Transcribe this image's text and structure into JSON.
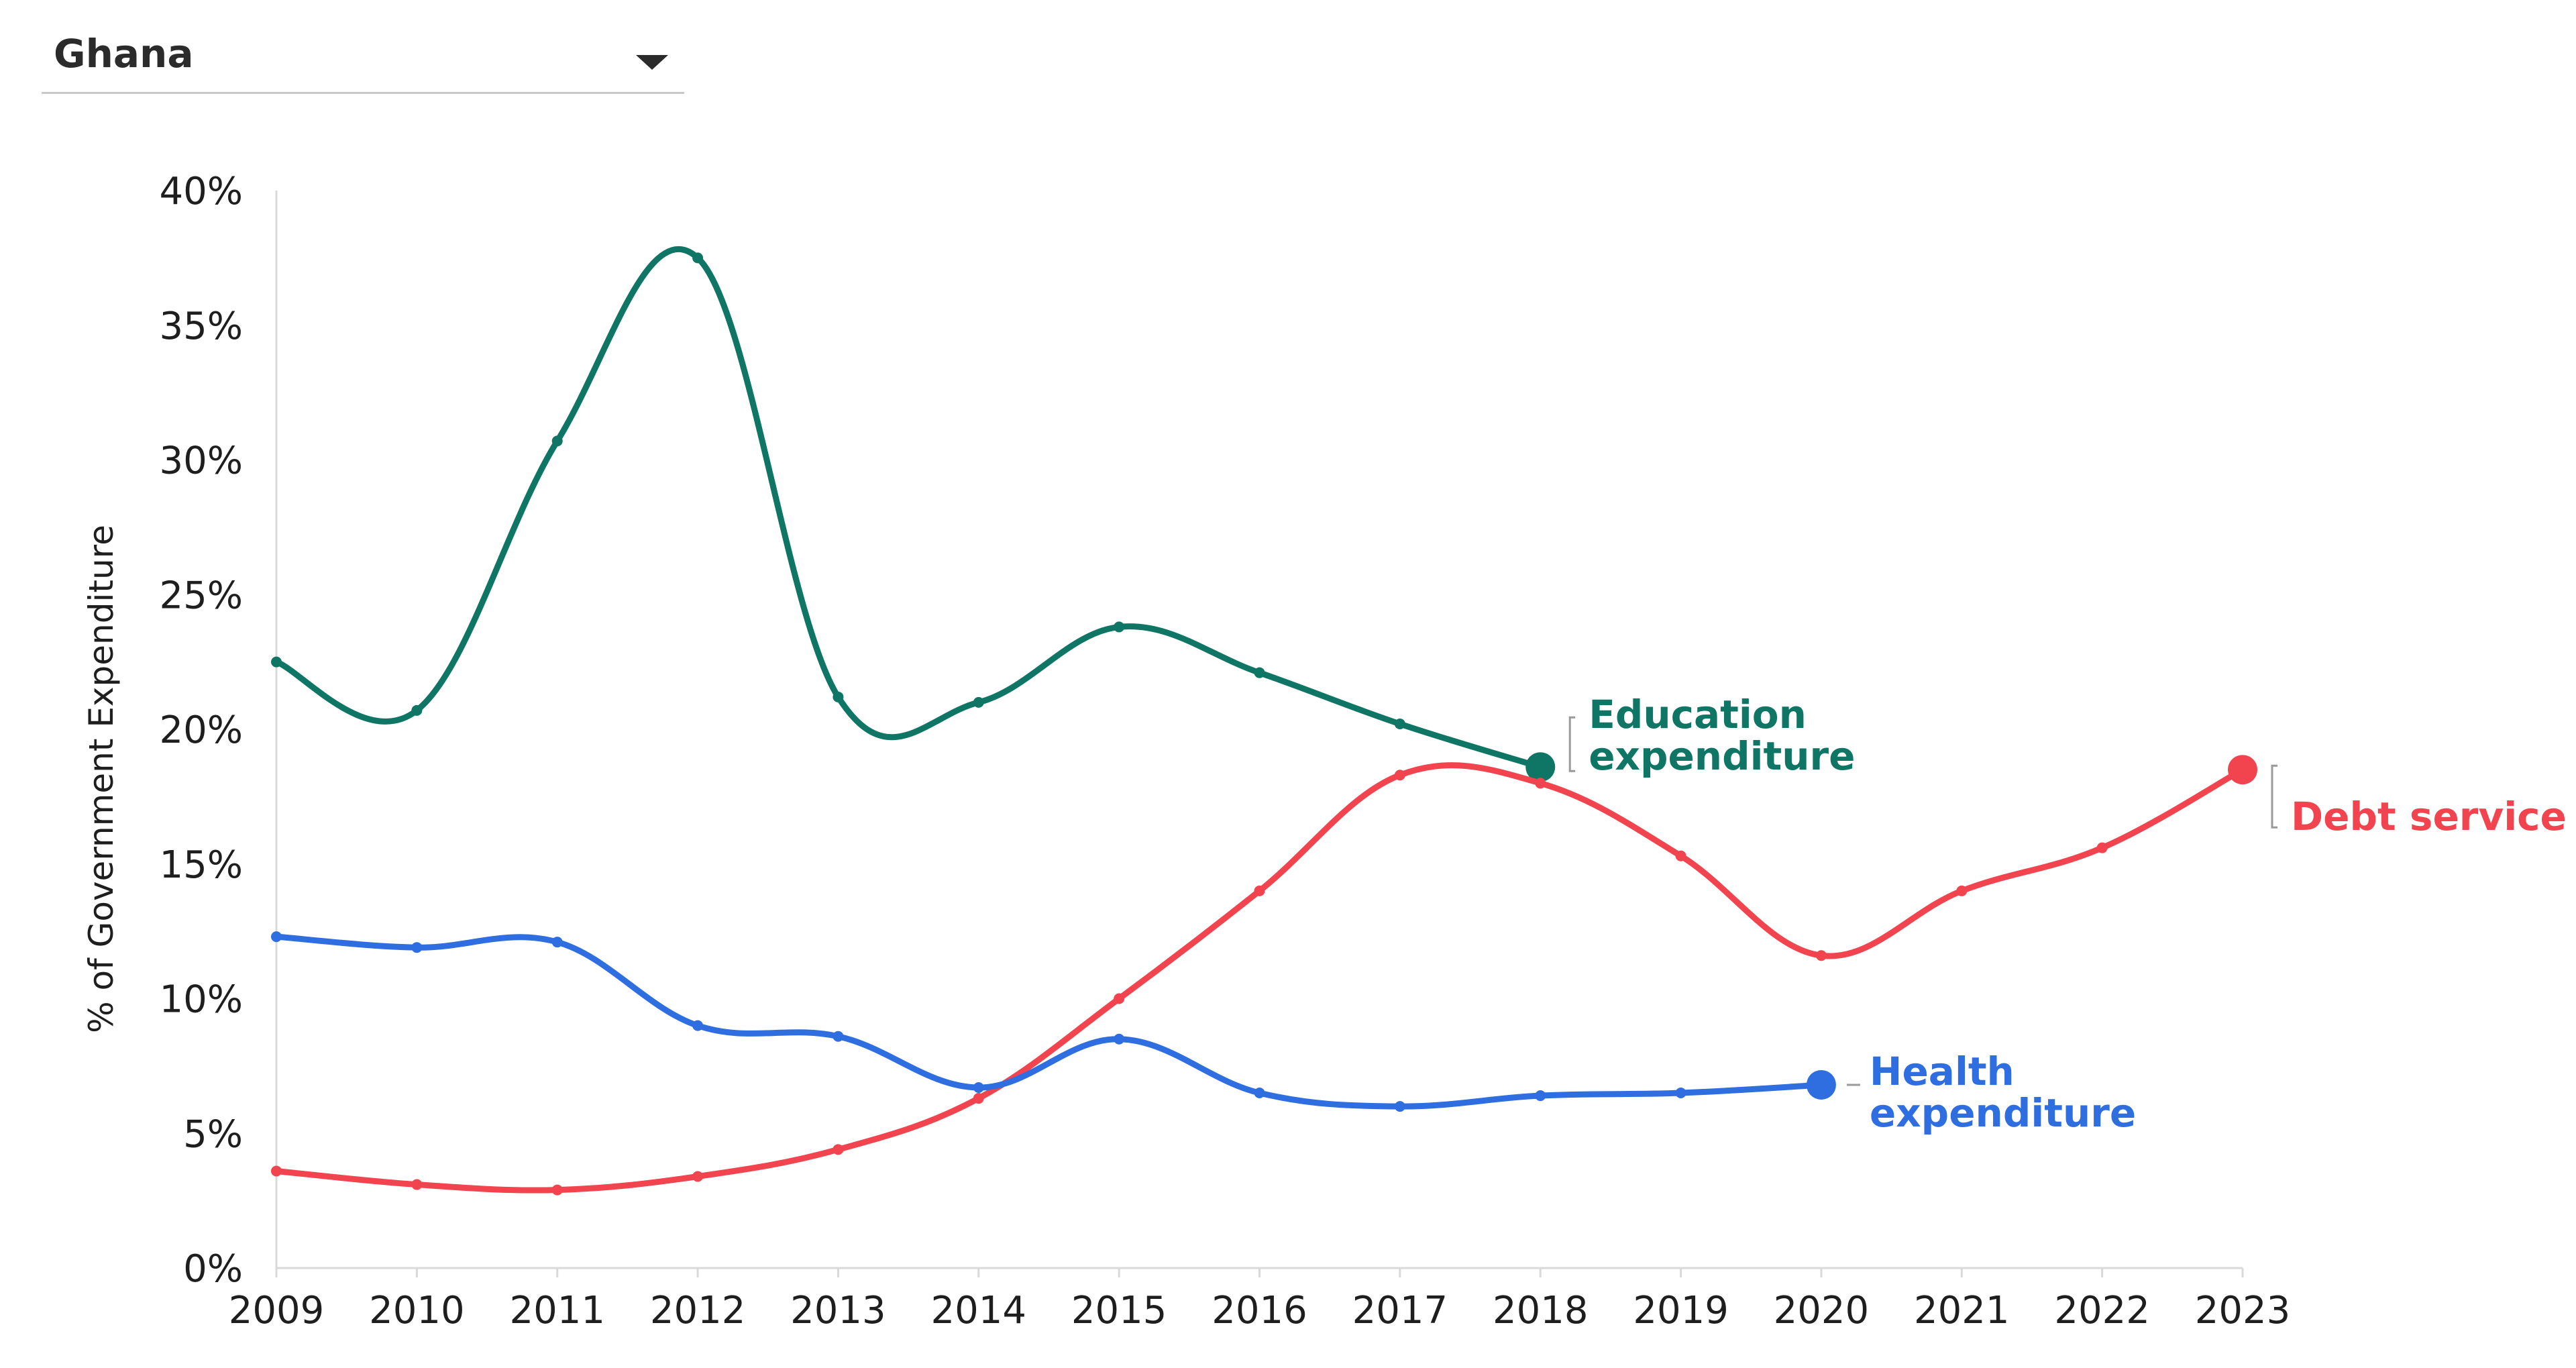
{
  "selector": {
    "selected": "Ghana"
  },
  "chart_data": {
    "type": "line",
    "title": "",
    "xlabel": "",
    "ylabel": "% of Government Expenditure",
    "x": [
      2009,
      2010,
      2011,
      2012,
      2013,
      2014,
      2015,
      2016,
      2017,
      2018,
      2019,
      2020,
      2021,
      2022,
      2023
    ],
    "ylim": [
      0,
      40
    ],
    "yticks": [
      0,
      5,
      10,
      15,
      20,
      25,
      30,
      35,
      40
    ],
    "ytick_labels": [
      "0%",
      "5%",
      "10%",
      "15%",
      "20%",
      "25%",
      "30%",
      "35%",
      "40%"
    ],
    "xtick_labels": [
      "2009",
      "2010",
      "2011",
      "2012",
      "2013",
      "2014",
      "2015",
      "2016",
      "2017",
      "2018",
      "2019",
      "2020",
      "2021",
      "2022",
      "2023"
    ],
    "grid": false,
    "series": [
      {
        "name": "Education expenditure",
        "label_lines": [
          "Education",
          "expenditure"
        ],
        "color": "#0f7564",
        "x": [
          2009,
          2010,
          2011,
          2012,
          2013,
          2014,
          2015,
          2016,
          2017,
          2018
        ],
        "values": [
          22.5,
          20.7,
          30.7,
          37.5,
          21.2,
          21.0,
          23.8,
          22.1,
          20.2,
          18.6
        ]
      },
      {
        "name": "Debt service",
        "label_lines": [
          "Debt service"
        ],
        "color": "#f1444f",
        "x": [
          2009,
          2010,
          2011,
          2012,
          2013,
          2014,
          2015,
          2016,
          2017,
          2018,
          2019,
          2020,
          2021,
          2022,
          2023
        ],
        "values": [
          3.6,
          3.1,
          2.9,
          3.4,
          4.4,
          6.3,
          10.0,
          14.0,
          18.3,
          18.0,
          15.3,
          11.6,
          14.0,
          15.6,
          18.5
        ]
      },
      {
        "name": "Health expenditure",
        "label_lines": [
          "Health",
          "expenditure"
        ],
        "color": "#2f6ee0",
        "x": [
          2009,
          2010,
          2011,
          2012,
          2013,
          2014,
          2015,
          2016,
          2017,
          2018,
          2019,
          2020
        ],
        "values": [
          12.3,
          11.9,
          12.1,
          9.0,
          8.6,
          6.7,
          8.5,
          6.5,
          6.0,
          6.4,
          6.5,
          6.8
        ]
      }
    ]
  }
}
